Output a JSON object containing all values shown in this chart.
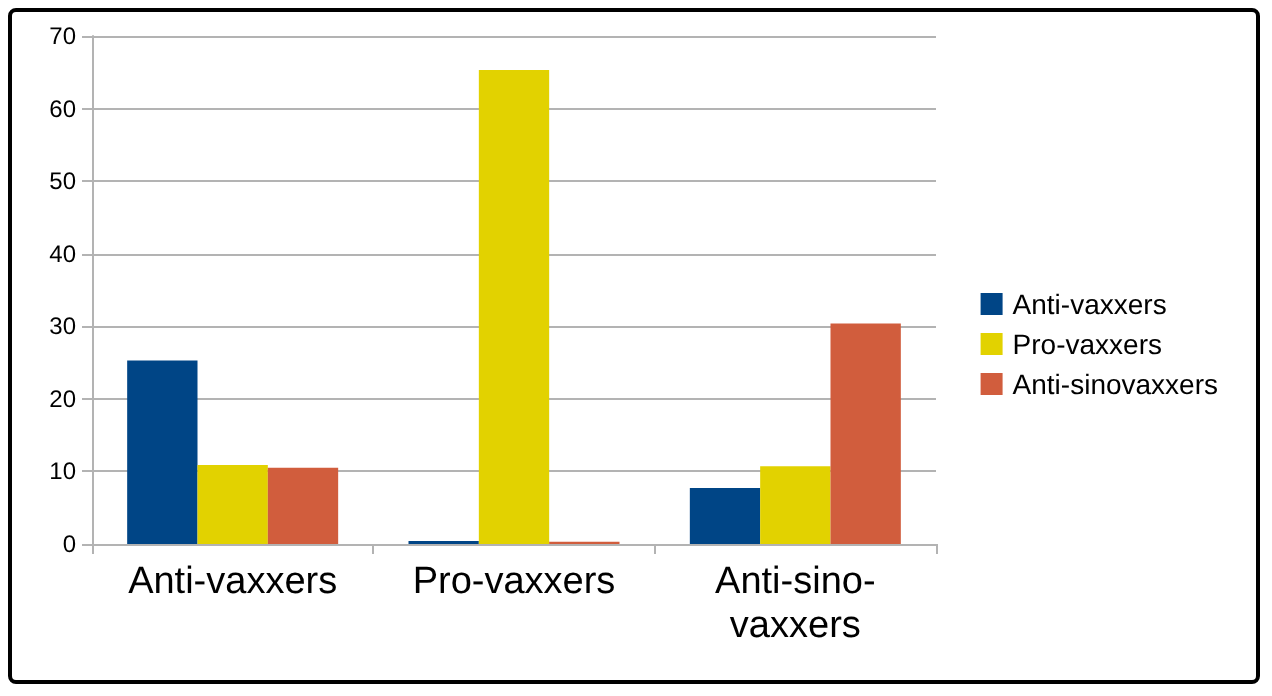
{
  "chart_data": {
    "type": "bar",
    "categories": [
      "Anti-vaxxers",
      "Pro-vaxxers",
      "Anti-sino-vaxxers"
    ],
    "series": [
      {
        "name": "Anti-vaxxers",
        "color": "#004586",
        "values": [
          25.3,
          0.4,
          7.7
        ]
      },
      {
        "name": "Pro-vaxxers",
        "color": "#e2d200",
        "values": [
          10.9,
          65.3,
          10.7
        ]
      },
      {
        "name": "Anti-sinovaxxers",
        "color": "#d15d3d",
        "values": [
          10.5,
          0.3,
          30.4
        ]
      }
    ],
    "ylim": [
      0,
      70
    ],
    "yticks": [
      0,
      10,
      20,
      30,
      40,
      50,
      60,
      70
    ],
    "grid": "y",
    "legend": "right"
  }
}
